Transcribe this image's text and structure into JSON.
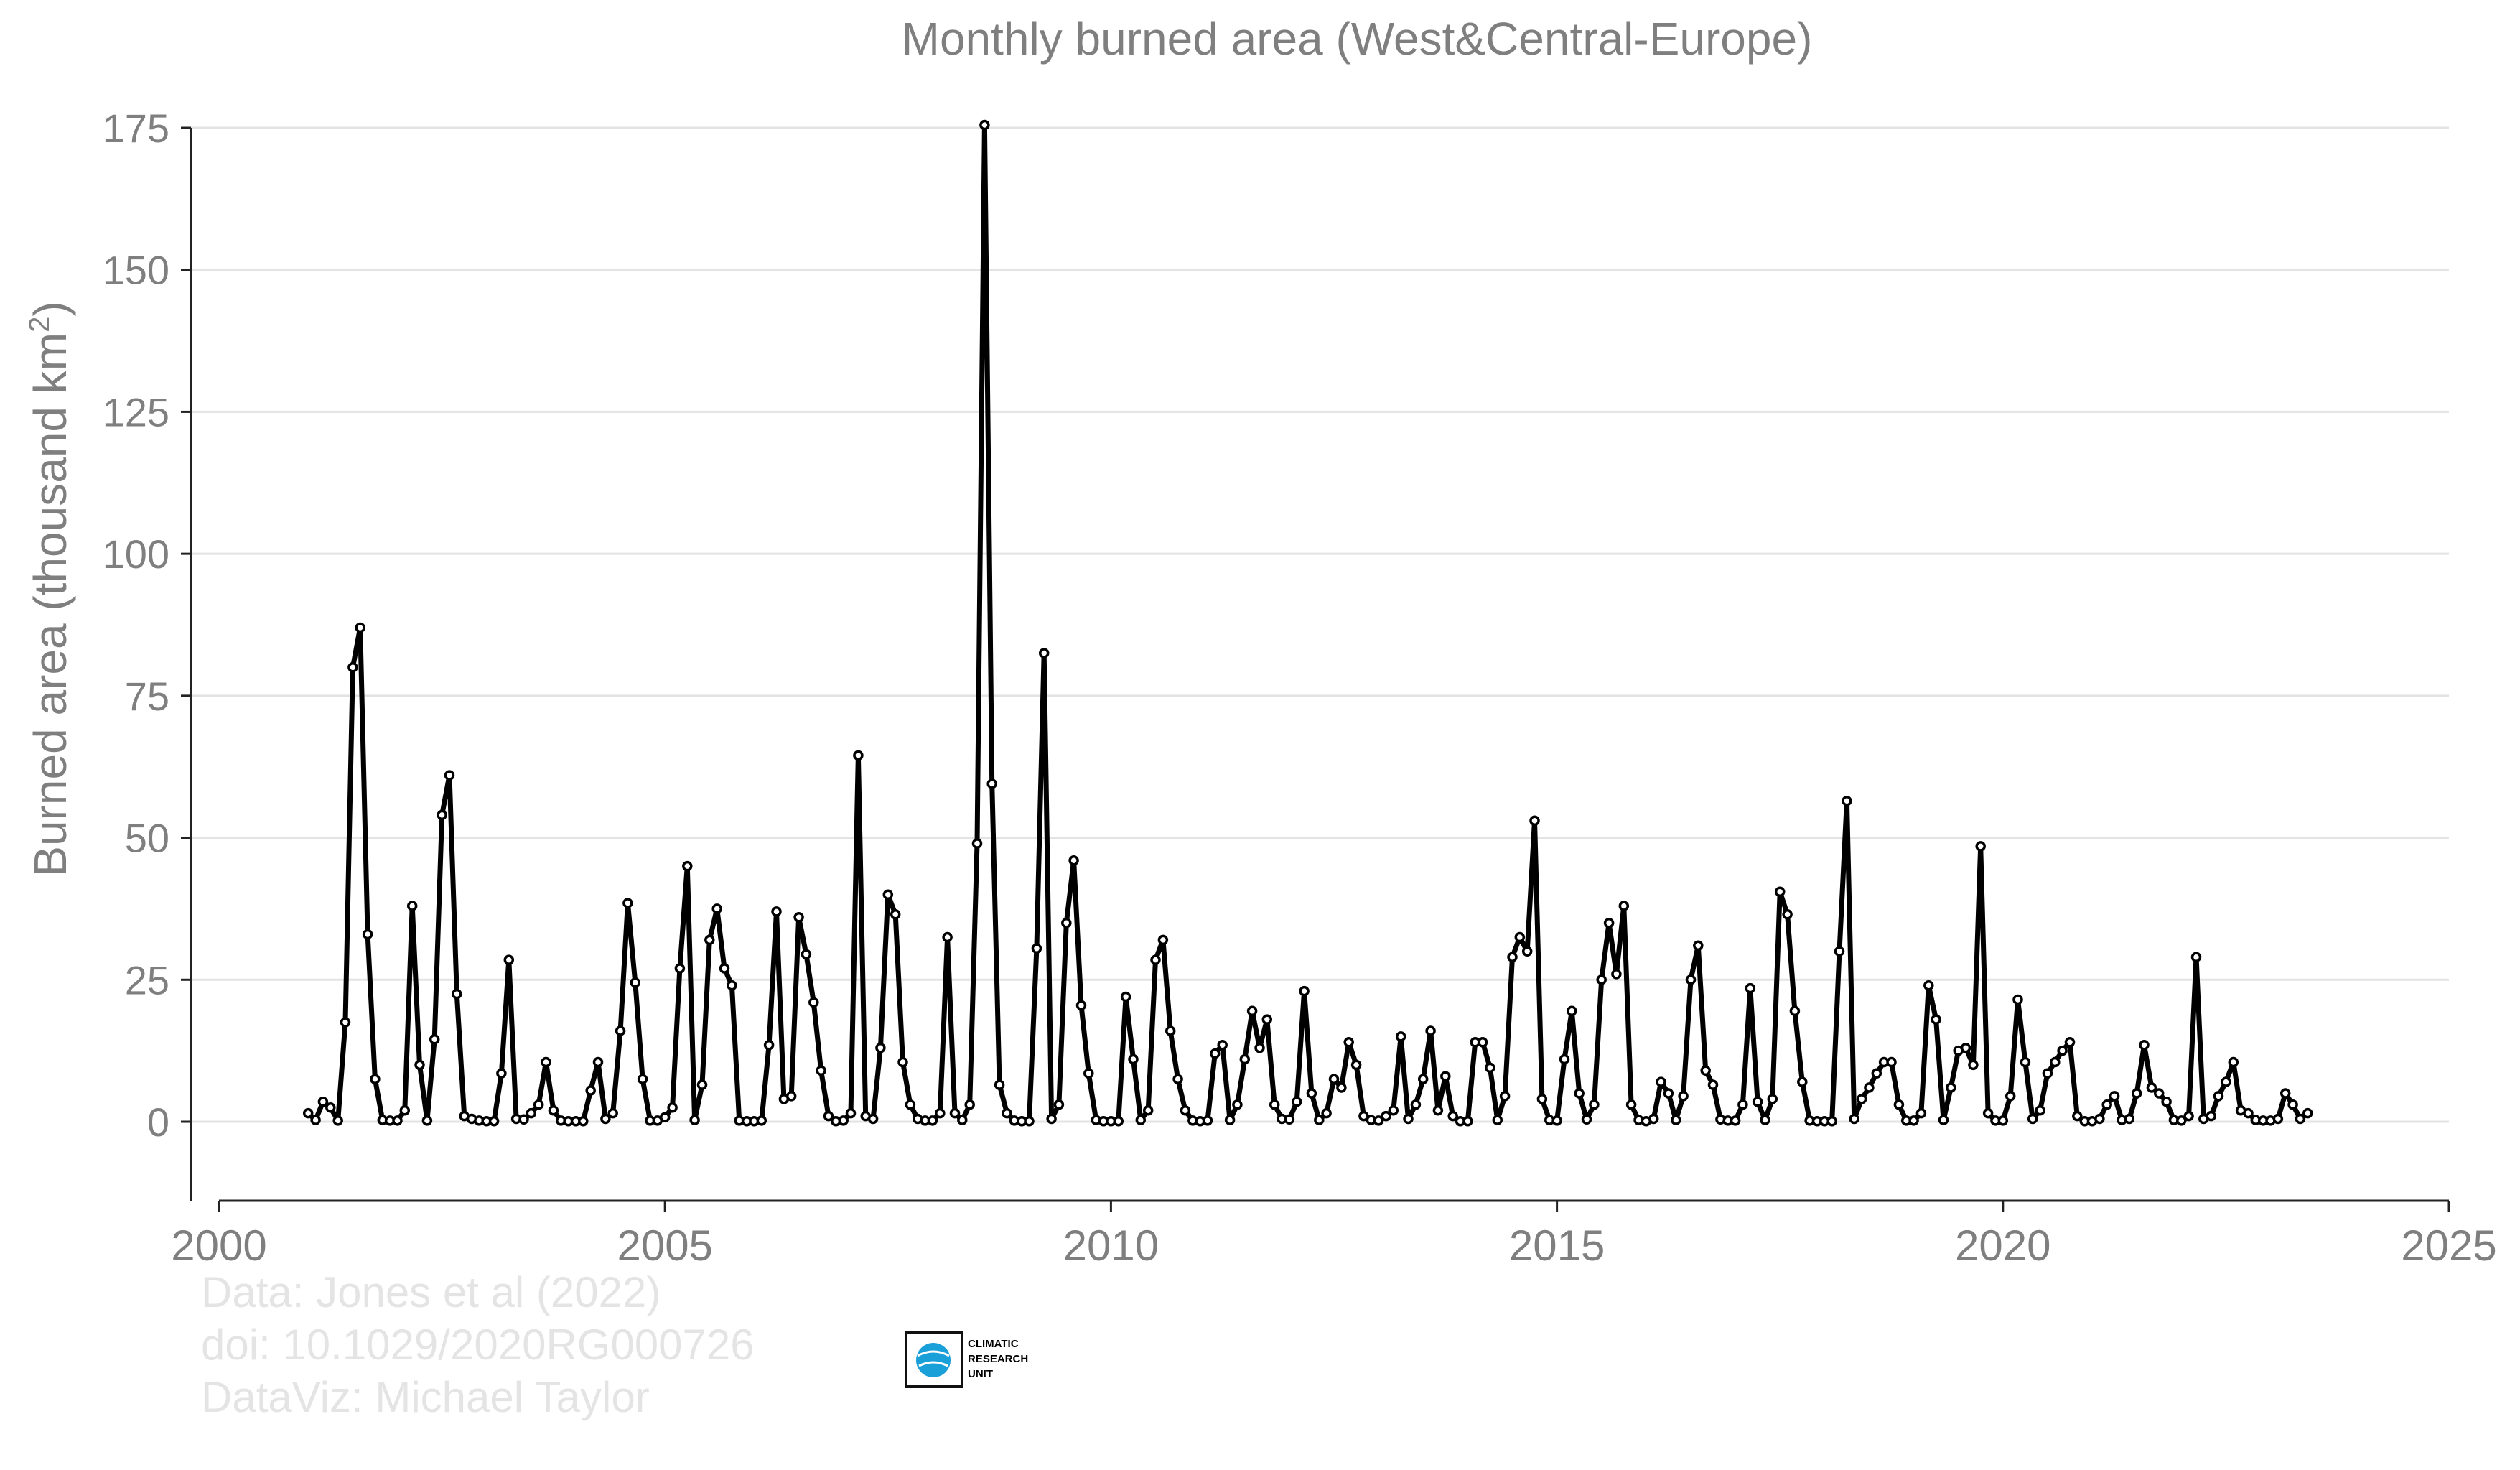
{
  "chart_data": {
    "type": "line",
    "title": "Monthly burned area (West&Central-Europe)",
    "ylabel": "Burned area (thousand km",
    "ylabel_sup": "2",
    "ylabel_close": ")",
    "xlabel": "",
    "xlim": [
      2000,
      2025
    ],
    "ylim": [
      -14,
      175
    ],
    "yticks": [
      0,
      25,
      50,
      75,
      100,
      125,
      150,
      175
    ],
    "xticks": [
      2000,
      2005,
      2010,
      2015,
      2020,
      2025
    ],
    "grid": true,
    "legend": "none",
    "line_color": "#000000",
    "series": [
      {
        "x_start": 2001.0,
        "x_step": 0.0833333,
        "values": [
          1.5,
          0.3,
          3.5,
          2.5,
          0.2,
          17.5,
          80,
          87,
          33,
          7.5,
          0.3,
          0.2,
          0.2,
          2,
          38,
          10,
          0.2,
          14.5,
          54,
          61,
          22.5,
          1,
          0.5,
          0.2,
          0.1,
          0.1,
          8.5,
          28.5,
          0.5,
          0.4,
          1.5,
          3,
          10.5,
          2,
          0.2,
          0.1,
          0.1,
          0.1,
          5.5,
          10.5,
          0.5,
          1.5,
          16,
          38.5,
          24.5,
          7.5,
          0.2,
          0.2,
          0.8,
          2.5,
          27,
          45,
          0.3,
          6.5,
          32,
          37.5,
          27,
          24,
          0.2,
          0.1,
          0.1,
          0.2,
          13.5,
          37,
          4,
          4.5,
          36,
          29.5,
          21,
          9,
          1,
          0.1,
          0.2,
          1.5,
          64.5,
          1,
          0.5,
          13,
          40,
          36.5,
          10.5,
          3,
          0.5,
          0.2,
          0.2,
          1.5,
          32.5,
          1.5,
          0.3,
          3,
          49,
          175.5,
          59.5,
          6.5,
          1.5,
          0.2,
          0.1,
          0.1,
          30.5,
          82.5,
          0.5,
          3,
          35,
          46,
          20.5,
          8.5,
          0.3,
          0.1,
          0.1,
          0.1,
          22,
          11,
          0.3,
          2,
          28.5,
          32,
          16,
          7.5,
          2,
          0.2,
          0.1,
          0.2,
          12,
          13.5,
          0.3,
          3,
          11,
          19.5,
          13,
          18,
          3,
          0.5,
          0.4,
          3.5,
          23,
          5,
          0.3,
          1.5,
          7.5,
          6,
          14,
          10,
          1,
          0.3,
          0.2,
          1,
          2,
          15,
          0.5,
          3,
          7.5,
          16,
          2,
          8,
          1,
          0.1,
          0.1,
          14,
          14,
          9.5,
          0.3,
          4.5,
          29,
          32.5,
          30,
          53,
          4,
          0.3,
          0.2,
          11,
          19.5,
          5,
          0.4,
          3,
          25,
          35,
          26,
          38,
          3,
          0.3,
          0.1,
          0.5,
          7,
          5,
          0.3,
          4.5,
          25,
          31,
          9,
          6.5,
          0.4,
          0.2,
          0.2,
          3,
          23.5,
          3.5,
          0.3,
          4,
          40.5,
          36.5,
          19.5,
          7,
          0.2,
          0.1,
          0.1,
          0.1,
          30,
          56.5,
          0.5,
          4,
          6,
          8.5,
          10.5,
          10.5,
          3,
          0.2,
          0.2,
          1.5,
          24,
          18,
          0.3,
          6,
          12.5,
          13,
          10,
          48.5,
          1.5,
          0.2,
          0.2,
          4.5,
          21.5,
          10.5,
          0.5,
          2,
          8.5,
          10.5,
          12.5,
          14,
          1,
          0.1,
          0.1,
          0.5,
          3,
          4.5,
          0.3,
          0.5,
          5,
          13.5,
          6,
          5,
          3.5,
          0.3,
          0.2,
          1,
          29,
          0.5,
          1,
          4.5,
          7,
          10.5,
          2,
          1.5,
          0.3,
          0.2,
          0.2,
          0.5,
          5,
          3,
          0.5,
          1.5
        ]
      }
    ]
  },
  "credits": {
    "line1": "Data: Jones et al (2022)",
    "line2": "doi: 10.1029/2020RG000726",
    "line3": "DataViz: Michael Taylor"
  },
  "logo": {
    "line1": "CLIMATIC",
    "line2": "RESEARCH",
    "line3": "UNIT",
    "accent": "#1aa0d8"
  }
}
